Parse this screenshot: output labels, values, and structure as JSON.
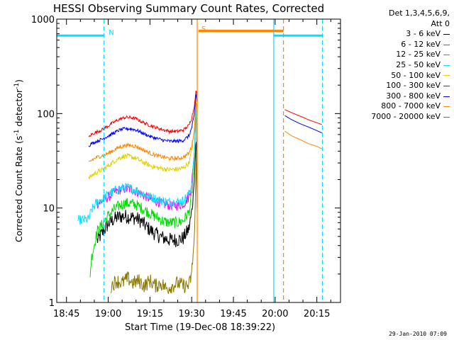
{
  "chart_data": {
    "type": "line",
    "title": "HESSI Observing Summary Count Rates, Corrected",
    "xlabel": "Start Time (19-Dec-08 18:39:22)",
    "ylabel_prefix": "Corrected Count Rate (s",
    "ylabel_sup1": "-1",
    "ylabel_mid": " detector",
    "ylabel_sup2": "-1",
    "ylabel_suffix": ")",
    "yscale": "log",
    "ylim": [
      1,
      1000
    ],
    "y_ticks": [
      {
        "v": 1,
        "label": "1"
      },
      {
        "v": 10,
        "label": "10"
      },
      {
        "v": 100,
        "label": "100"
      },
      {
        "v": 1000,
        "label": "1000"
      }
    ],
    "xlim_minutes": [
      -3.5,
      98.5
    ],
    "x_ticks": [
      {
        "m": 0,
        "label": "18:45"
      },
      {
        "m": 15,
        "label": "19:00"
      },
      {
        "m": 30,
        "label": "19:15"
      },
      {
        "m": 45,
        "label": "19:30"
      },
      {
        "m": 60,
        "label": "19:45"
      },
      {
        "m": 75,
        "label": "20:00"
      },
      {
        "m": 90,
        "label": "20:15"
      }
    ],
    "legend_title_1": "Det 1,3,4,5,6,9,",
    "legend_title_2": "Att 0",
    "series": [
      {
        "name": "3 - 6 keV",
        "color": "#000000",
        "data": [
          [
            11,
            4.5
          ],
          [
            13,
            5.5
          ],
          [
            15,
            6.8
          ],
          [
            17,
            7.6
          ],
          [
            19,
            8.1
          ],
          [
            21,
            8.2
          ],
          [
            23,
            8.0
          ],
          [
            25,
            7.8
          ],
          [
            27,
            7.2
          ],
          [
            29,
            6.2
          ],
          [
            31,
            5.6
          ],
          [
            33,
            5.1
          ],
          [
            35,
            4.8
          ],
          [
            37,
            4.6
          ],
          [
            40,
            4.6
          ],
          [
            42,
            4.8
          ],
          [
            44,
            6
          ],
          [
            45,
            9
          ],
          [
            46,
            20
          ],
          [
            46.6,
            60
          ],
          [
            47,
            10
          ]
        ]
      },
      {
        "name": "6 - 12 keV",
        "color": "#ff00ff",
        "data": [
          [
            11,
            11
          ],
          [
            13,
            12
          ],
          [
            15,
            13
          ],
          [
            17,
            14.5
          ],
          [
            19,
            15.5
          ],
          [
            21,
            16
          ],
          [
            23,
            15.8
          ],
          [
            25,
            15
          ],
          [
            27,
            14
          ],
          [
            29,
            13
          ],
          [
            31,
            12.2
          ],
          [
            33,
            11.6
          ],
          [
            35,
            11
          ],
          [
            37,
            10.6
          ],
          [
            40,
            10.6
          ],
          [
            42,
            11
          ],
          [
            44,
            13
          ],
          [
            45,
            18
          ],
          [
            46,
            40
          ],
          [
            46.6,
            120
          ],
          [
            47,
            20
          ]
        ]
      },
      {
        "name": "12 - 25 keV",
        "color": "#00dd00",
        "data": [
          [
            -3.5,
            2
          ],
          [
            8.5,
            2
          ],
          [
            9,
            3
          ],
          [
            11,
            5.6
          ],
          [
            13,
            6.8
          ],
          [
            15,
            8.3
          ],
          [
            17,
            9.6
          ],
          [
            19,
            10.6
          ],
          [
            21,
            11.2
          ],
          [
            23,
            11.2
          ],
          [
            25,
            10.8
          ],
          [
            27,
            10
          ],
          [
            29,
            9.2
          ],
          [
            31,
            8.4
          ],
          [
            33,
            7.8
          ],
          [
            35,
            7.2
          ],
          [
            37,
            7
          ],
          [
            40,
            7
          ],
          [
            42,
            7.4
          ],
          [
            44,
            9
          ],
          [
            45,
            13
          ],
          [
            46,
            35
          ],
          [
            46.6,
            130
          ],
          [
            47,
            25
          ]
        ]
      },
      {
        "name": "25 - 50 keV",
        "color": "#00e0ff",
        "data": [
          [
            -3.5,
            7.2
          ],
          [
            4,
            7.4
          ],
          [
            8,
            7.6
          ],
          [
            9,
            9.5
          ],
          [
            11,
            11.5
          ],
          [
            13,
            12.5
          ],
          [
            15,
            13.8
          ],
          [
            17,
            15
          ],
          [
            19,
            16
          ],
          [
            21,
            16.5
          ],
          [
            23,
            16.2
          ],
          [
            25,
            15.5
          ],
          [
            27,
            14.5
          ],
          [
            29,
            13.5
          ],
          [
            31,
            12.8
          ],
          [
            33,
            12.2
          ],
          [
            35,
            11.8
          ],
          [
            37,
            11.5
          ],
          [
            40,
            11.6
          ],
          [
            42,
            12
          ],
          [
            44,
            14
          ],
          [
            45,
            18
          ],
          [
            46,
            40
          ],
          [
            46.6,
            140
          ],
          [
            47,
            30
          ]
        ]
      },
      {
        "name": "50 - 100 keV",
        "color": "#e0d000",
        "data": [
          [
            -3.5,
            20
          ],
          [
            8,
            20.5
          ],
          [
            9,
            22
          ],
          [
            11,
            24
          ],
          [
            13,
            25.5
          ],
          [
            15,
            28
          ],
          [
            17,
            31
          ],
          [
            19,
            34
          ],
          [
            21,
            35.5
          ],
          [
            23,
            35
          ],
          [
            25,
            33.5
          ],
          [
            27,
            31
          ],
          [
            29,
            29
          ],
          [
            31,
            27.5
          ],
          [
            33,
            26.5
          ],
          [
            35,
            26
          ],
          [
            37,
            25.5
          ],
          [
            40,
            25.8
          ],
          [
            42,
            26.5
          ],
          [
            44,
            30
          ],
          [
            45,
            40
          ],
          [
            46,
            70
          ],
          [
            46.6,
            150
          ],
          [
            47,
            60
          ]
        ]
      },
      {
        "name": "100 - 300 keV",
        "color": "#ff0000",
        "data": [
          [
            -3.5,
            55
          ],
          [
            8,
            56
          ],
          [
            9,
            60
          ],
          [
            11,
            64
          ],
          [
            13,
            68
          ],
          [
            15,
            74
          ],
          [
            17,
            81
          ],
          [
            19,
            87
          ],
          [
            21,
            91
          ],
          [
            23,
            91
          ],
          [
            25,
            88
          ],
          [
            27,
            82
          ],
          [
            29,
            77
          ],
          [
            31,
            73
          ],
          [
            33,
            70
          ],
          [
            35,
            67
          ],
          [
            37,
            65
          ],
          [
            40,
            65
          ],
          [
            42,
            67
          ],
          [
            44,
            75
          ],
          [
            45,
            90
          ],
          [
            46,
            120
          ],
          [
            46.6,
            185
          ],
          [
            47,
            130
          ],
          [
            78.5,
            110
          ],
          [
            81,
            102
          ],
          [
            84,
            94
          ],
          [
            87,
            86
          ],
          [
            90,
            80
          ],
          [
            92,
            76
          ]
        ]
      },
      {
        "name": "300 - 800 keV",
        "color": "#0000ff",
        "data": [
          [
            -3.5,
            45
          ],
          [
            8,
            45.5
          ],
          [
            9,
            48
          ],
          [
            11,
            51
          ],
          [
            13,
            54
          ],
          [
            15,
            58
          ],
          [
            17,
            62
          ],
          [
            19,
            67
          ],
          [
            21,
            69
          ],
          [
            23,
            69
          ],
          [
            25,
            67
          ],
          [
            27,
            63
          ],
          [
            29,
            59
          ],
          [
            31,
            56
          ],
          [
            33,
            54
          ],
          [
            35,
            52
          ],
          [
            37,
            51
          ],
          [
            40,
            51
          ],
          [
            42,
            52
          ],
          [
            44,
            58
          ],
          [
            45,
            70
          ],
          [
            46,
            100
          ],
          [
            46.6,
            170
          ],
          [
            47,
            120
          ],
          [
            78.5,
            95
          ],
          [
            81,
            86
          ],
          [
            84,
            78
          ],
          [
            87,
            72
          ],
          [
            90,
            66
          ],
          [
            92,
            62
          ]
        ]
      },
      {
        "name": "800 - 7000 keV",
        "color": "#ff8800",
        "data": [
          [
            -3.5,
            30
          ],
          [
            8,
            30
          ],
          [
            9,
            32
          ],
          [
            11,
            34.5
          ],
          [
            13,
            36
          ],
          [
            15,
            38
          ],
          [
            17,
            41
          ],
          [
            19,
            44
          ],
          [
            21,
            46
          ],
          [
            23,
            46
          ],
          [
            25,
            45
          ],
          [
            27,
            42
          ],
          [
            29,
            39.5
          ],
          [
            31,
            37
          ],
          [
            33,
            35.5
          ],
          [
            35,
            34.5
          ],
          [
            37,
            33.5
          ],
          [
            40,
            33.5
          ],
          [
            42,
            34.5
          ],
          [
            44,
            38
          ],
          [
            45,
            45
          ],
          [
            46,
            65
          ],
          [
            46.6,
            140
          ],
          [
            47,
            100
          ],
          [
            78.5,
            65
          ],
          [
            81,
            58
          ],
          [
            84,
            53
          ],
          [
            87,
            48
          ],
          [
            90,
            45
          ],
          [
            92,
            42
          ]
        ]
      },
      {
        "name": "7000 - 20000 keV",
        "color": "#8b7a00",
        "data": [
          [
            16,
            1.5
          ],
          [
            18,
            1.7
          ],
          [
            20,
            1.6
          ],
          [
            22,
            1.8
          ],
          [
            24,
            1.6
          ],
          [
            26,
            1.7
          ],
          [
            28,
            1.5
          ],
          [
            30,
            1.7
          ],
          [
            32,
            1.5
          ],
          [
            34,
            1.6
          ],
          [
            36,
            1.4
          ],
          [
            38,
            1.5
          ],
          [
            40,
            1.6
          ],
          [
            42,
            1.5
          ],
          [
            44,
            1.5
          ],
          [
            45,
            2
          ],
          [
            46,
            5
          ],
          [
            46.6,
            30
          ],
          [
            47,
            8
          ]
        ]
      }
    ],
    "annotations": [
      {
        "text": "N",
        "at_minutes": 13.5
      },
      {
        "text": "S",
        "at_minutes": 47.5
      }
    ],
    "footer": "29-Jan-2010 07:09"
  }
}
